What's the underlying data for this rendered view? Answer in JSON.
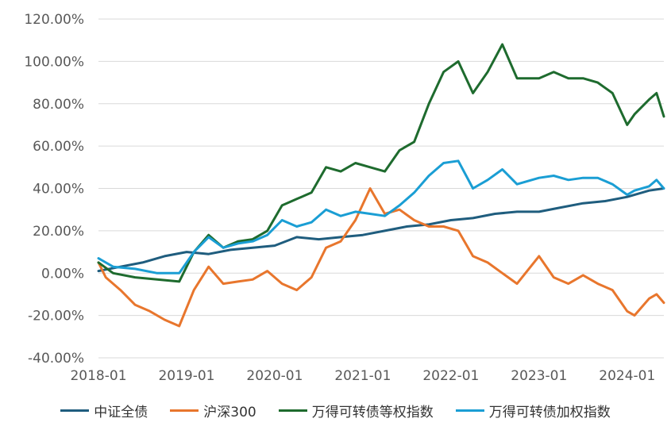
{
  "chart_data": {
    "type": "line",
    "title": "",
    "xlabel": "",
    "ylabel": "",
    "x_ticks": [
      "2018-01",
      "2019-01",
      "2020-01",
      "2021-01",
      "2022-01",
      "2023-01",
      "2024-01"
    ],
    "x_range": [
      "2018-01",
      "2024-06"
    ],
    "y_ticks": [
      "120.00%",
      "100.00%",
      "80.00%",
      "60.00%",
      "40.00%",
      "20.00%",
      "0.00%",
      "-20.00%",
      "-40.00%"
    ],
    "ylim": [
      -40,
      120
    ],
    "y_unit": "%",
    "grid": "horizontal",
    "legend_position": "bottom",
    "series": [
      {
        "name": "中证全债",
        "color": "#1F5D7E",
        "points": [
          [
            "2018-01",
            1
          ],
          [
            "2018-04",
            3
          ],
          [
            "2018-07",
            5
          ],
          [
            "2018-10",
            8
          ],
          [
            "2019-01",
            10
          ],
          [
            "2019-04",
            9
          ],
          [
            "2019-07",
            11
          ],
          [
            "2019-10",
            12
          ],
          [
            "2020-01",
            13
          ],
          [
            "2020-04",
            17
          ],
          [
            "2020-07",
            16
          ],
          [
            "2020-10",
            17
          ],
          [
            "2021-01",
            18
          ],
          [
            "2021-04",
            20
          ],
          [
            "2021-07",
            22
          ],
          [
            "2021-10",
            23
          ],
          [
            "2022-01",
            25
          ],
          [
            "2022-04",
            26
          ],
          [
            "2022-07",
            28
          ],
          [
            "2022-10",
            29
          ],
          [
            "2023-01",
            29
          ],
          [
            "2023-04",
            31
          ],
          [
            "2023-07",
            33
          ],
          [
            "2023-10",
            34
          ],
          [
            "2024-01",
            36
          ],
          [
            "2024-04",
            39
          ],
          [
            "2024-06",
            40
          ]
        ]
      },
      {
        "name": "沪深300",
        "color": "#E8762D",
        "points": [
          [
            "2018-01",
            5
          ],
          [
            "2018-02",
            -2
          ],
          [
            "2018-04",
            -8
          ],
          [
            "2018-06",
            -15
          ],
          [
            "2018-08",
            -18
          ],
          [
            "2018-10",
            -22
          ],
          [
            "2018-12",
            -25
          ],
          [
            "2019-02",
            -8
          ],
          [
            "2019-04",
            3
          ],
          [
            "2019-06",
            -5
          ],
          [
            "2019-08",
            -4
          ],
          [
            "2019-10",
            -3
          ],
          [
            "2019-12",
            1
          ],
          [
            "2020-02",
            -5
          ],
          [
            "2020-04",
            -8
          ],
          [
            "2020-06",
            -2
          ],
          [
            "2020-08",
            12
          ],
          [
            "2020-10",
            15
          ],
          [
            "2020-12",
            25
          ],
          [
            "2021-02",
            40
          ],
          [
            "2021-04",
            28
          ],
          [
            "2021-06",
            30
          ],
          [
            "2021-08",
            25
          ],
          [
            "2021-10",
            22
          ],
          [
            "2021-12",
            22
          ],
          [
            "2022-02",
            20
          ],
          [
            "2022-04",
            8
          ],
          [
            "2022-06",
            5
          ],
          [
            "2022-08",
            0
          ],
          [
            "2022-10",
            -5
          ],
          [
            "2023-01",
            8
          ],
          [
            "2023-03",
            -2
          ],
          [
            "2023-05",
            -5
          ],
          [
            "2023-07",
            -1
          ],
          [
            "2023-09",
            -5
          ],
          [
            "2023-11",
            -8
          ],
          [
            "2024-01",
            -18
          ],
          [
            "2024-02",
            -20
          ],
          [
            "2024-04",
            -12
          ],
          [
            "2024-05",
            -10
          ],
          [
            "2024-06",
            -14
          ]
        ]
      },
      {
        "name": "万得可转债等权指数",
        "color": "#1E6B2E",
        "points": [
          [
            "2018-01",
            5
          ],
          [
            "2018-03",
            0
          ],
          [
            "2018-06",
            -2
          ],
          [
            "2018-09",
            -3
          ],
          [
            "2018-12",
            -4
          ],
          [
            "2019-02",
            10
          ],
          [
            "2019-04",
            18
          ],
          [
            "2019-06",
            12
          ],
          [
            "2019-08",
            15
          ],
          [
            "2019-10",
            16
          ],
          [
            "2019-12",
            20
          ],
          [
            "2020-02",
            32
          ],
          [
            "2020-04",
            35
          ],
          [
            "2020-06",
            38
          ],
          [
            "2020-08",
            50
          ],
          [
            "2020-10",
            48
          ],
          [
            "2020-12",
            52
          ],
          [
            "2021-02",
            50
          ],
          [
            "2021-04",
            48
          ],
          [
            "2021-06",
            58
          ],
          [
            "2021-08",
            62
          ],
          [
            "2021-10",
            80
          ],
          [
            "2021-12",
            95
          ],
          [
            "2022-02",
            100
          ],
          [
            "2022-04",
            85
          ],
          [
            "2022-06",
            95
          ],
          [
            "2022-08",
            108
          ],
          [
            "2022-10",
            92
          ],
          [
            "2023-01",
            92
          ],
          [
            "2023-03",
            95
          ],
          [
            "2023-05",
            92
          ],
          [
            "2023-07",
            92
          ],
          [
            "2023-09",
            90
          ],
          [
            "2023-11",
            85
          ],
          [
            "2024-01",
            70
          ],
          [
            "2024-02",
            75
          ],
          [
            "2024-04",
            82
          ],
          [
            "2024-05",
            85
          ],
          [
            "2024-06",
            74
          ]
        ]
      },
      {
        "name": "万得可转债加权指数",
        "color": "#1A9ED4",
        "points": [
          [
            "2018-01",
            7
          ],
          [
            "2018-03",
            3
          ],
          [
            "2018-06",
            2
          ],
          [
            "2018-09",
            0
          ],
          [
            "2018-12",
            0
          ],
          [
            "2019-02",
            10
          ],
          [
            "2019-04",
            17
          ],
          [
            "2019-06",
            12
          ],
          [
            "2019-08",
            14
          ],
          [
            "2019-10",
            15
          ],
          [
            "2019-12",
            18
          ],
          [
            "2020-02",
            25
          ],
          [
            "2020-04",
            22
          ],
          [
            "2020-06",
            24
          ],
          [
            "2020-08",
            30
          ],
          [
            "2020-10",
            27
          ],
          [
            "2020-12",
            29
          ],
          [
            "2021-02",
            28
          ],
          [
            "2021-04",
            27
          ],
          [
            "2021-06",
            32
          ],
          [
            "2021-08",
            38
          ],
          [
            "2021-10",
            46
          ],
          [
            "2021-12",
            52
          ],
          [
            "2022-02",
            53
          ],
          [
            "2022-04",
            40
          ],
          [
            "2022-06",
            44
          ],
          [
            "2022-08",
            49
          ],
          [
            "2022-10",
            42
          ],
          [
            "2023-01",
            45
          ],
          [
            "2023-03",
            46
          ],
          [
            "2023-05",
            44
          ],
          [
            "2023-07",
            45
          ],
          [
            "2023-09",
            45
          ],
          [
            "2023-11",
            42
          ],
          [
            "2024-01",
            37
          ],
          [
            "2024-02",
            39
          ],
          [
            "2024-04",
            41
          ],
          [
            "2024-05",
            44
          ],
          [
            "2024-06",
            40
          ]
        ]
      }
    ]
  }
}
